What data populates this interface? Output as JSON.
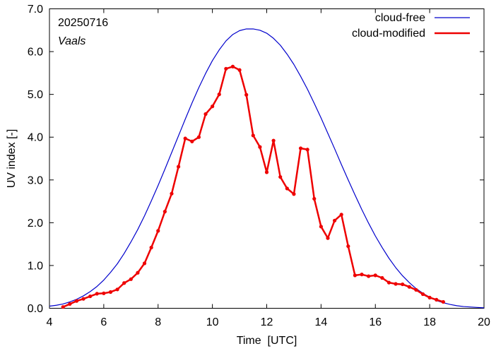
{
  "chart_data": {
    "type": "line",
    "date_label": "20250716",
    "location_label": "Vaals",
    "xlabel": "Time  [UTC]",
    "ylabel": "UV index  [-]",
    "xlim": [
      4,
      20
    ],
    "ylim": [
      0,
      7
    ],
    "x_ticks": [
      4,
      6,
      8,
      10,
      12,
      14,
      16,
      18,
      20
    ],
    "y_ticks": [
      0,
      1,
      2,
      3,
      4,
      5,
      6,
      7
    ],
    "x_tick_labels": [
      "4",
      "6",
      "8",
      "10",
      "12",
      "14",
      "16",
      "18",
      "20"
    ],
    "y_tick_labels": [
      "0.0",
      "1.0",
      "2.0",
      "3.0",
      "4.0",
      "5.0",
      "6.0",
      "7.0"
    ],
    "grid": false,
    "legend_position": "top-right",
    "series": [
      {
        "name": "cloud-free",
        "color": "#0000cc",
        "style": "line",
        "x": [
          4.0,
          4.25,
          4.5,
          4.75,
          5.0,
          5.25,
          5.5,
          5.75,
          6.0,
          6.25,
          6.5,
          6.75,
          7.0,
          7.25,
          7.5,
          7.75,
          8.0,
          8.25,
          8.5,
          8.75,
          9.0,
          9.25,
          9.5,
          9.75,
          10.0,
          10.25,
          10.5,
          10.75,
          11.0,
          11.25,
          11.5,
          11.75,
          12.0,
          12.25,
          12.5,
          12.75,
          13.0,
          13.25,
          13.5,
          13.75,
          14.0,
          14.25,
          14.5,
          14.75,
          15.0,
          15.25,
          15.5,
          15.75,
          16.0,
          16.25,
          16.5,
          16.75,
          17.0,
          17.25,
          17.5,
          17.75,
          18.0,
          18.25,
          18.5,
          18.75,
          19.0,
          19.25,
          19.5,
          19.75,
          20.0
        ],
        "y": [
          0.05,
          0.07,
          0.1,
          0.15,
          0.21,
          0.29,
          0.39,
          0.51,
          0.66,
          0.84,
          1.04,
          1.28,
          1.55,
          1.84,
          2.16,
          2.51,
          2.87,
          3.25,
          3.64,
          4.03,
          4.42,
          4.8,
          5.16,
          5.49,
          5.79,
          6.04,
          6.25,
          6.4,
          6.49,
          6.53,
          6.53,
          6.5,
          6.43,
          6.31,
          6.15,
          5.94,
          5.7,
          5.42,
          5.12,
          4.79,
          4.45,
          4.09,
          3.73,
          3.36,
          3.0,
          2.65,
          2.31,
          1.99,
          1.69,
          1.42,
          1.17,
          0.95,
          0.76,
          0.6,
          0.46,
          0.35,
          0.26,
          0.18,
          0.13,
          0.09,
          0.06,
          0.04,
          0.03,
          0.02,
          0.01
        ]
      },
      {
        "name": "cloud-modified",
        "color": "#ee0000",
        "style": "line-points",
        "x": [
          4.5,
          4.75,
          5.0,
          5.25,
          5.5,
          5.75,
          6.0,
          6.25,
          6.5,
          6.75,
          7.0,
          7.25,
          7.5,
          7.75,
          8.0,
          8.25,
          8.5,
          8.75,
          9.0,
          9.25,
          9.5,
          9.75,
          10.0,
          10.25,
          10.5,
          10.75,
          11.0,
          11.25,
          11.5,
          11.75,
          12.0,
          12.25,
          12.5,
          12.75,
          13.0,
          13.25,
          13.5,
          13.75,
          14.0,
          14.25,
          14.5,
          14.75,
          15.0,
          15.25,
          15.5,
          15.75,
          16.0,
          16.25,
          16.5,
          16.75,
          17.0,
          17.25,
          17.5,
          17.75,
          18.0,
          18.25,
          18.5
        ],
        "y": [
          0.03,
          0.1,
          0.17,
          0.22,
          0.28,
          0.34,
          0.35,
          0.38,
          0.44,
          0.59,
          0.68,
          0.83,
          1.05,
          1.42,
          1.81,
          2.26,
          2.68,
          3.31,
          3.97,
          3.9,
          4.0,
          4.54,
          4.72,
          5.0,
          5.6,
          5.65,
          5.57,
          4.99,
          4.04,
          3.77,
          3.18,
          3.92,
          3.07,
          2.8,
          2.67,
          3.74,
          3.71,
          2.56,
          1.91,
          1.64,
          2.05,
          2.19,
          1.45,
          0.77,
          0.79,
          0.75,
          0.77,
          0.71,
          0.6,
          0.57,
          0.56,
          0.5,
          0.43,
          0.33,
          0.25,
          0.2,
          0.15
        ]
      }
    ]
  }
}
